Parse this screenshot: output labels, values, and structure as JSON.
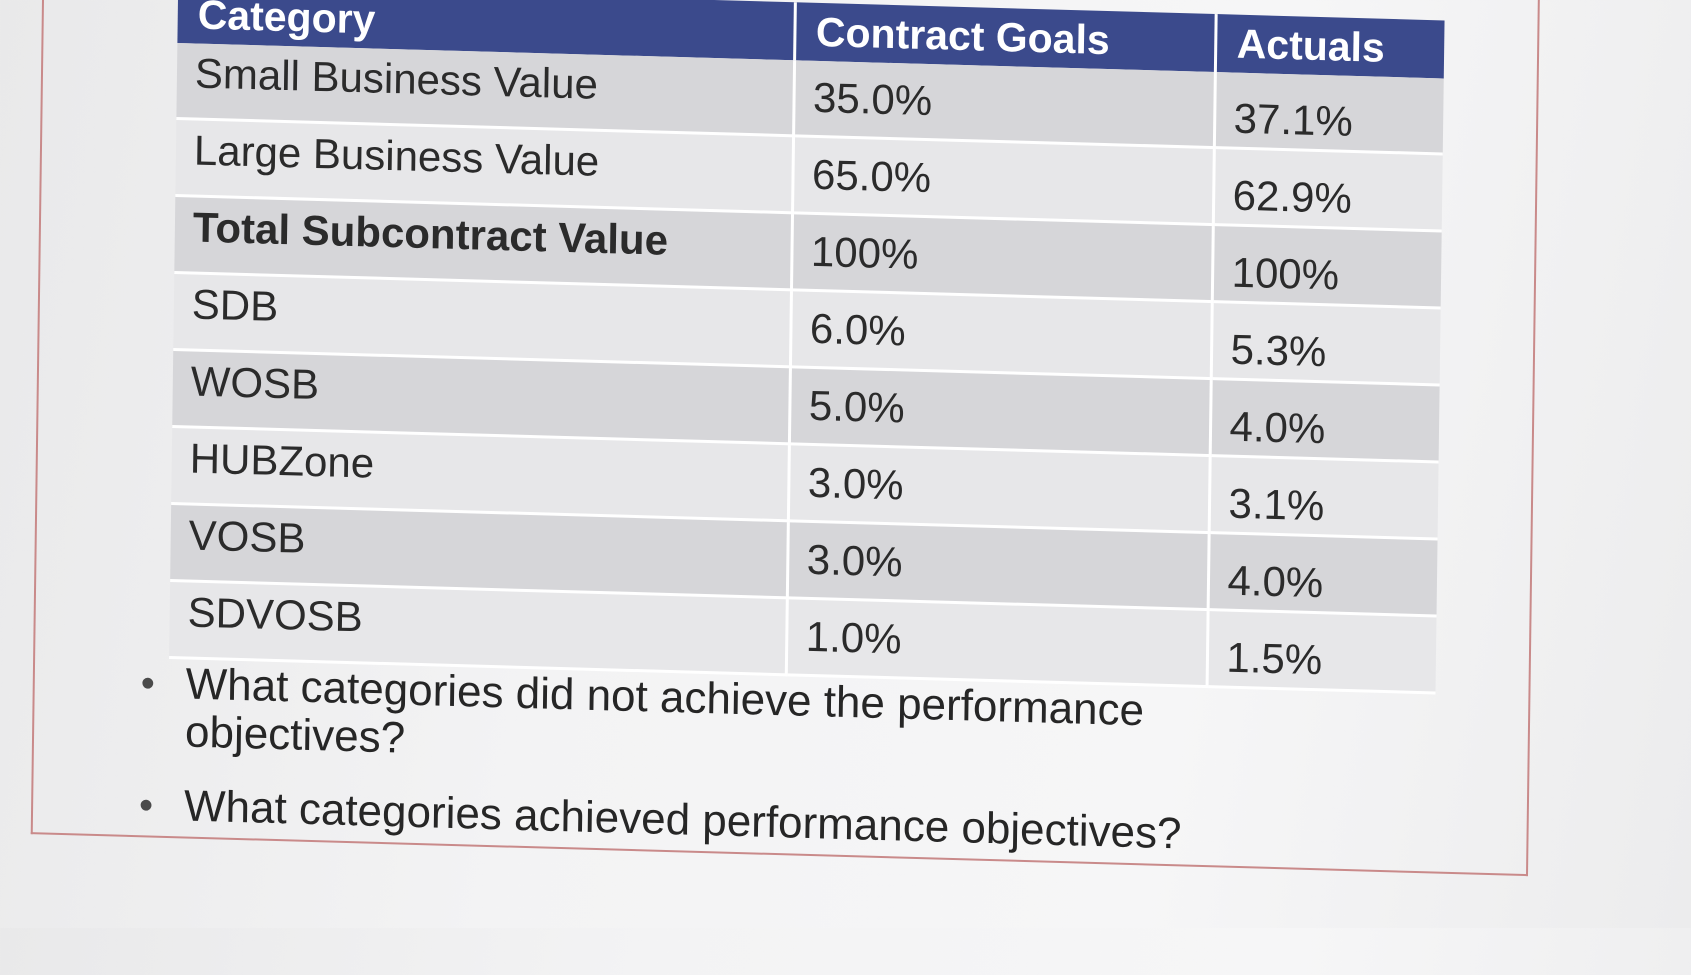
{
  "table": {
    "headers": [
      "Category",
      "Contract Goals",
      "Actuals"
    ],
    "rows": [
      {
        "category": "Small Business Value",
        "goal": "35.0%",
        "actual": "37.1%"
      },
      {
        "category": "Large Business Value",
        "goal": "65.0%",
        "actual": "62.9%"
      },
      {
        "category": "Total Subcontract Value",
        "goal": "100%",
        "actual": "100%"
      },
      {
        "category": "SDB",
        "goal": "6.0%",
        "actual": "5.3%"
      },
      {
        "category": "WOSB",
        "goal": "5.0%",
        "actual": "4.0%"
      },
      {
        "category": "HUBZone",
        "goal": "3.0%",
        "actual": "3.1%"
      },
      {
        "category": "VOSB",
        "goal": "3.0%",
        "actual": "4.0%"
      },
      {
        "category": "SDVOSB",
        "goal": "1.0%",
        "actual": "1.5%"
      }
    ]
  },
  "questions": [
    "What categories did not achieve the performance objectives?",
    "What categories achieved performance objectives?"
  ],
  "colors": {
    "header_bg": "#3b4a8c",
    "row_shade": "#d6d6d9",
    "row_light": "#e7e7e9",
    "frame_border": "#c98a8a"
  }
}
